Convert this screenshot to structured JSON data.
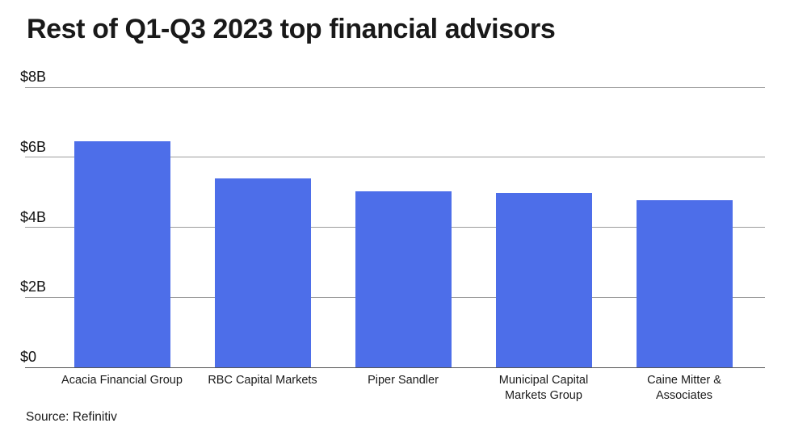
{
  "chart": {
    "title": "Rest of Q1-Q3 2023 top financial advisors",
    "source": "Source: Refinitiv"
  },
  "chart_data": {
    "type": "bar",
    "title": "Rest of Q1-Q3 2023 top financial advisors",
    "source": "Source: Refinitiv",
    "categories": [
      "Acacia Financial Group",
      "RBC Capital Markets",
      "Piper Sandler",
      "Municipal Capital Markets Group",
      "Caine Mitter & Associates"
    ],
    "values": [
      6.46,
      5.4,
      5.02,
      4.98,
      4.77
    ],
    "unit": "USD billions",
    "xlabel": "",
    "ylabel": "",
    "ylim": [
      0,
      8
    ],
    "yticks": [
      {
        "label": "$0",
        "value": 0
      },
      {
        "label": "$2B",
        "value": 2
      },
      {
        "label": "$4B",
        "value": 4
      },
      {
        "label": "$6B",
        "value": 6
      },
      {
        "label": "$8B",
        "value": 8
      }
    ],
    "grid": true,
    "legend": false,
    "bar_color": "#4D6EE9",
    "gridline_color": "#9C9C9C",
    "axis_line_color": "#555555",
    "label_lines": [
      [
        "Acacia Financial Group"
      ],
      [
        "RBC Capital Markets"
      ],
      [
        "Piper Sandler"
      ],
      [
        "Municipal Capital",
        "Markets Group"
      ],
      [
        "Caine Mitter &",
        "Associates"
      ]
    ]
  }
}
